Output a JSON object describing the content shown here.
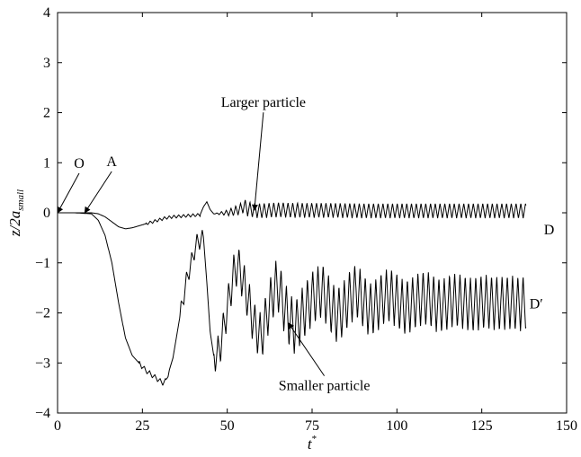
{
  "chart_data": {
    "type": "line",
    "title": "",
    "xlabel": "t*",
    "ylabel": "z/2a_small",
    "xlim": [
      0,
      150
    ],
    "ylim": [
      -4,
      4
    ],
    "xticks": [
      0,
      25,
      50,
      75,
      100,
      125,
      150
    ],
    "yticks": [
      -4,
      -3,
      -2,
      -1,
      0,
      1,
      2,
      3,
      4
    ],
    "xtick_labels": [
      "0",
      "25",
      "50",
      "75",
      "100",
      "125",
      "150"
    ],
    "ytick_labels": [
      "−4",
      "−3",
      "−2",
      "−1",
      "0",
      "1",
      "2",
      "3",
      "4"
    ],
    "grid": false,
    "series": [
      {
        "name": "Larger particle",
        "color": "#000000",
        "x": [
          0,
          5,
          10,
          12,
          14,
          16,
          18,
          20,
          22,
          24,
          26,
          28,
          30,
          32,
          34,
          36,
          38,
          40,
          42,
          43,
          44,
          45,
          46,
          48,
          50,
          52,
          54,
          55,
          56,
          58,
          60,
          62,
          65,
          70,
          75,
          80,
          90,
          100,
          110,
          120,
          130,
          138
        ],
        "y": [
          0,
          0,
          0,
          -0.02,
          -0.08,
          -0.18,
          -0.28,
          -0.32,
          -0.3,
          -0.26,
          -0.22,
          -0.18,
          -0.14,
          -0.1,
          -0.08,
          -0.07,
          -0.06,
          -0.05,
          -0.04,
          0.12,
          0.22,
          0.06,
          -0.02,
          -0.01,
          0,
          0.03,
          0.08,
          0.14,
          0.08,
          0.05,
          0.04,
          0.05,
          0.06,
          0.05,
          0.05,
          0.05,
          0.04,
          0.04,
          0.04,
          0.04,
          0.04,
          0.04
        ],
        "oscillation_amplitude": 0.15
      },
      {
        "name": "Smaller particle",
        "color": "#000000",
        "x": [
          0,
          5,
          10,
          12,
          14,
          16,
          18,
          20,
          22,
          24,
          26,
          28,
          30,
          31,
          32,
          34,
          36,
          38,
          40,
          41,
          42,
          43,
          44,
          45,
          46,
          47,
          48,
          50,
          52,
          53,
          54,
          56,
          58,
          60,
          62,
          64,
          65,
          66,
          68,
          70,
          72,
          75,
          78,
          80,
          82,
          84,
          86,
          88,
          90,
          92,
          94,
          96,
          98,
          100,
          102,
          104,
          106,
          108,
          110,
          112,
          114,
          116,
          118,
          120,
          122,
          124,
          126,
          128,
          130,
          132,
          134,
          136,
          138
        ],
        "y": [
          0,
          0,
          -0.02,
          -0.15,
          -0.45,
          -1.0,
          -1.8,
          -2.5,
          -2.85,
          -3.0,
          -3.15,
          -3.25,
          -3.35,
          -3.4,
          -3.35,
          -2.9,
          -2.1,
          -1.35,
          -0.85,
          -0.6,
          -0.55,
          -0.5,
          -1.4,
          -2.4,
          -2.85,
          -2.85,
          -2.65,
          -1.9,
          -1.2,
          -1.05,
          -1.2,
          -1.7,
          -2.25,
          -2.5,
          -1.95,
          -1.5,
          -1.45,
          -1.7,
          -2.1,
          -2.3,
          -2.05,
          -1.7,
          -1.55,
          -1.8,
          -2.05,
          -1.95,
          -1.7,
          -1.55,
          -1.75,
          -1.95,
          -1.85,
          -1.7,
          -1.65,
          -1.75,
          -1.9,
          -1.85,
          -1.75,
          -1.7,
          -1.75,
          -1.85,
          -1.85,
          -1.75,
          -1.75,
          -1.8,
          -1.85,
          -1.8,
          -1.78,
          -1.8,
          -1.82,
          -1.8,
          -1.8,
          -1.82,
          -1.8
        ],
        "oscillation_amplitude": 0.55
      }
    ],
    "annotations": [
      {
        "text": "Larger particle",
        "target": [
          58,
          0.05
        ]
      },
      {
        "text": "Smaller particle",
        "target": [
          68,
          -2.2
        ]
      },
      {
        "text": "O",
        "target": [
          0,
          0
        ]
      },
      {
        "text": "A",
        "target": [
          8,
          0
        ]
      },
      {
        "text": "D",
        "target": [
          138,
          0
        ]
      },
      {
        "text": "D′",
        "target": [
          138,
          -1.8
        ]
      }
    ]
  }
}
